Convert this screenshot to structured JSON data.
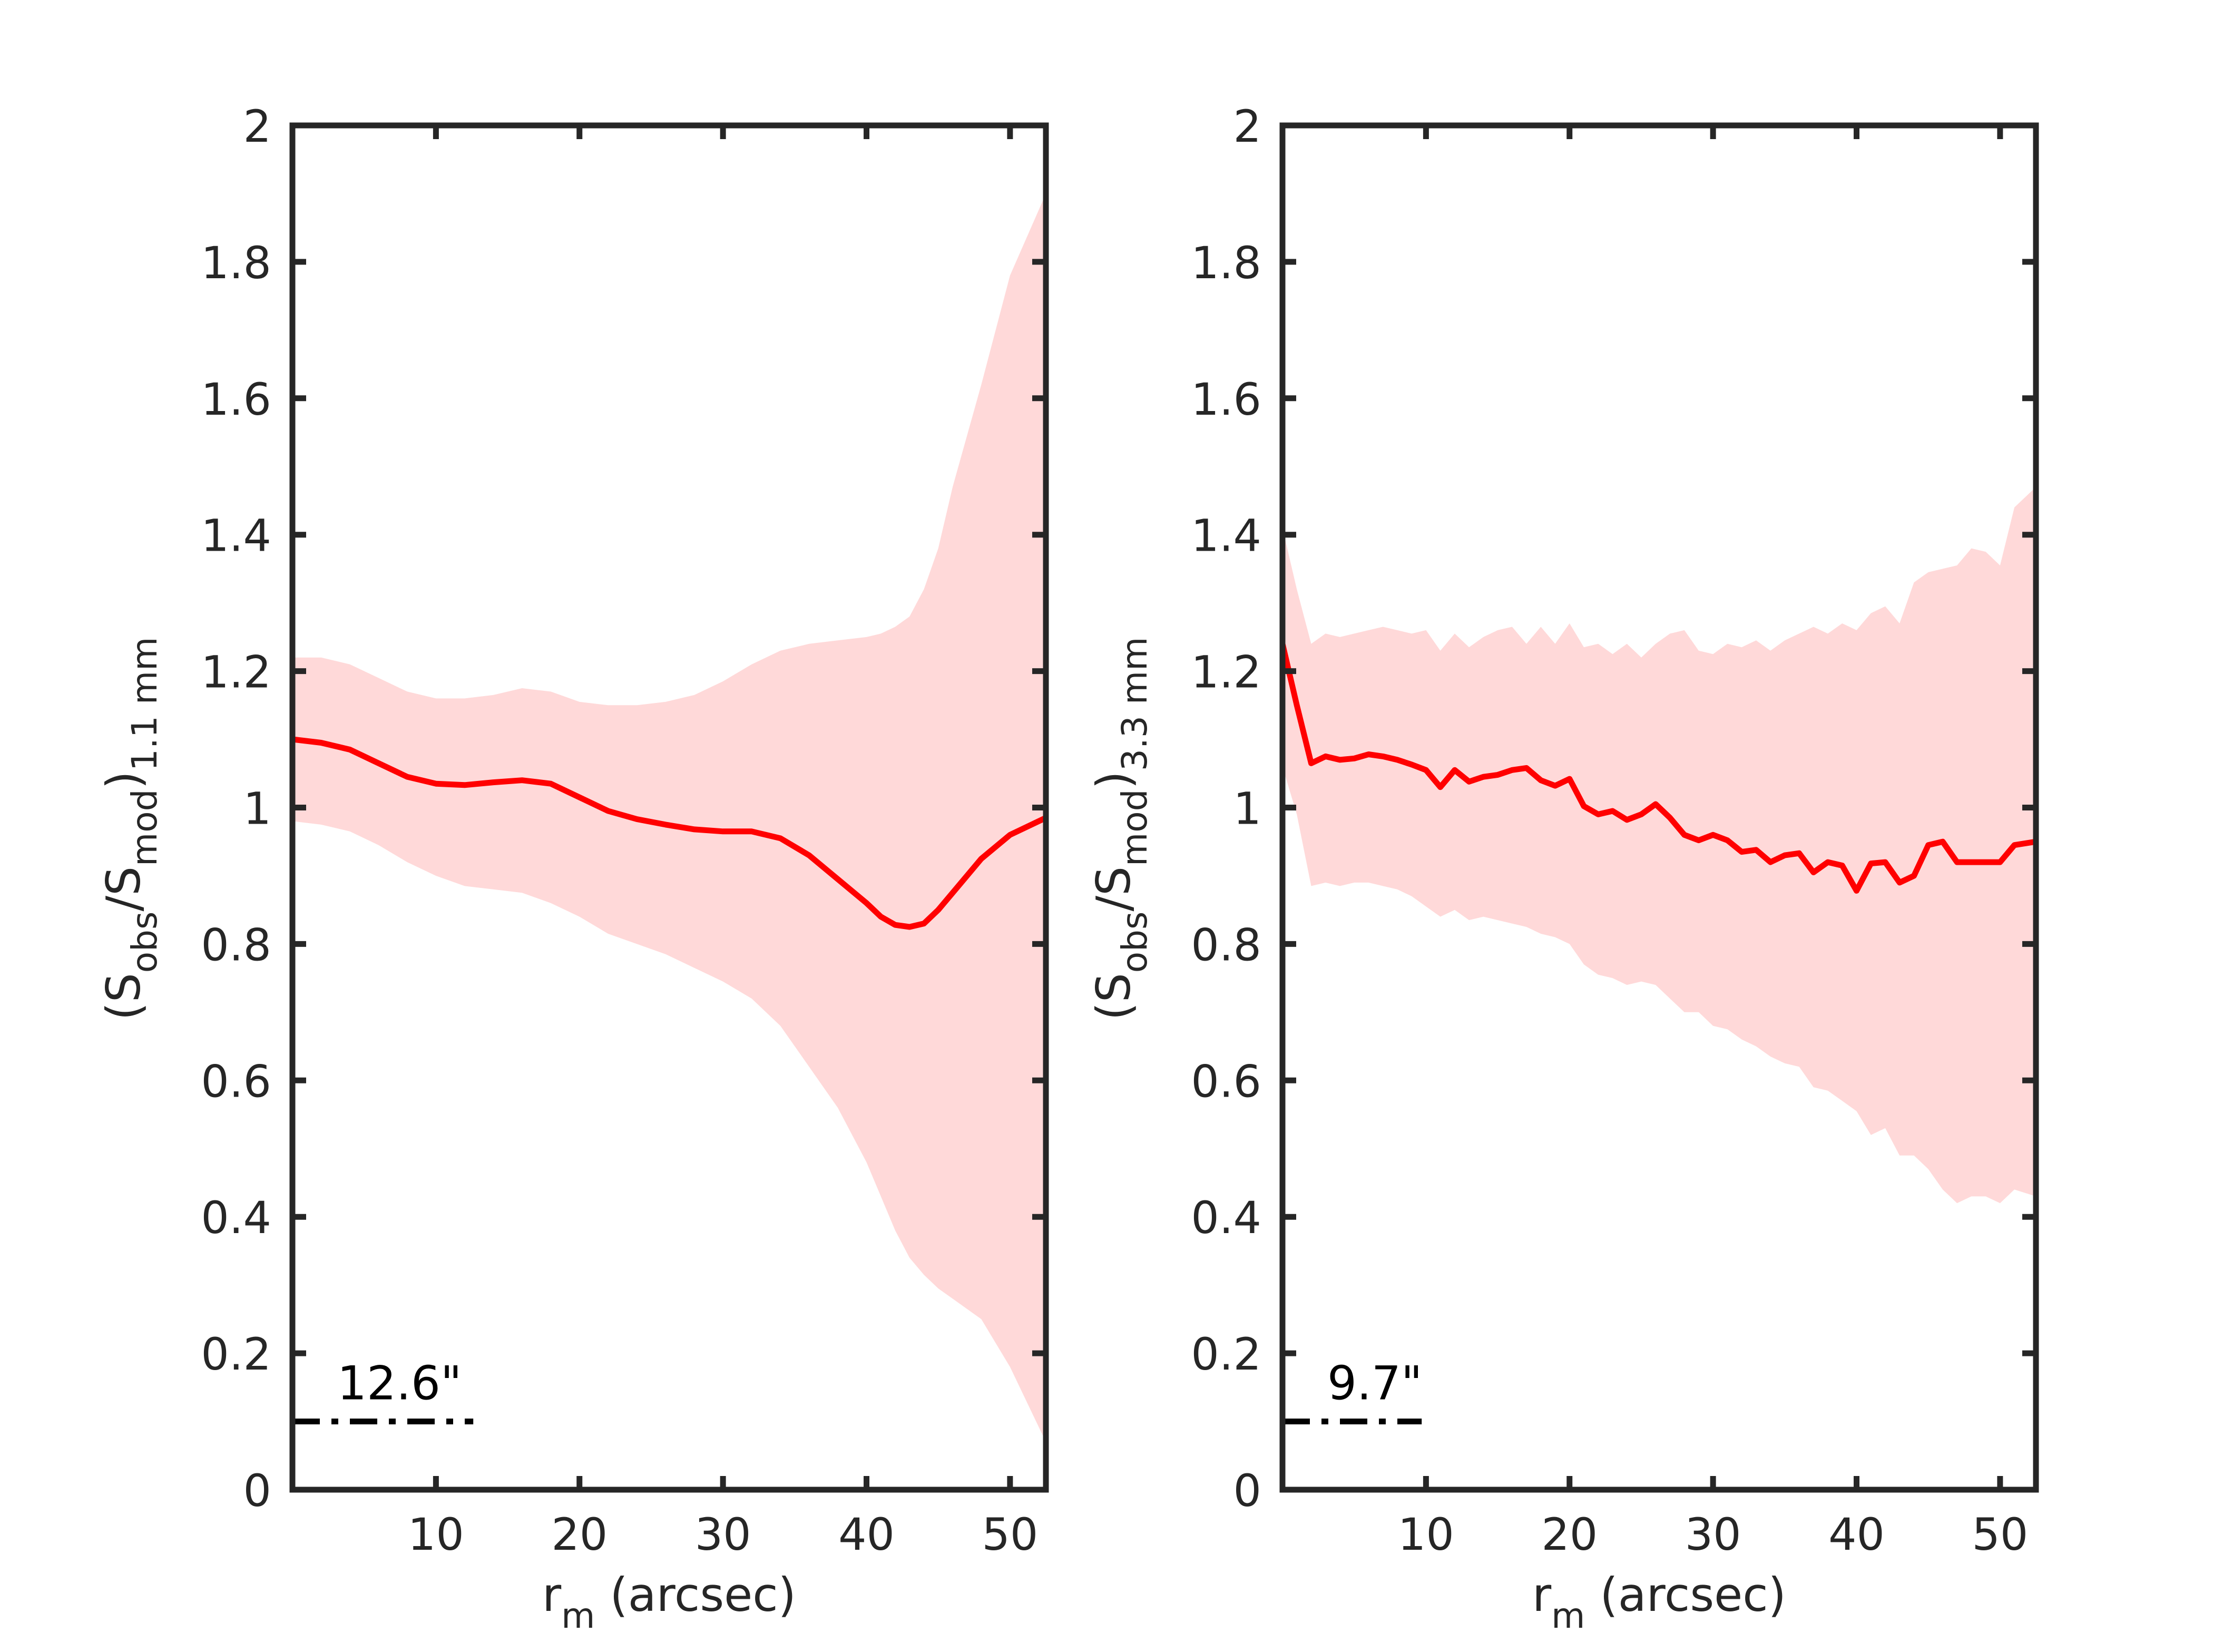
{
  "chart_data": [
    {
      "type": "line",
      "panel": "left",
      "title": "",
      "xlabel": "r",
      "xlabel_sub": "m",
      "xlabel_rest": " (arcsec)",
      "ylabel": {
        "open": "(S",
        "sub1": "obs",
        "mid": "/S",
        "sub2": "mod",
        "close": ")",
        "sub3": "1.1 mm"
      },
      "xlim": [
        0,
        52.5
      ],
      "ylim": [
        0,
        2
      ],
      "xticks": [
        10,
        20,
        30,
        40,
        50
      ],
      "yticks": [
        0,
        0.2,
        0.4,
        0.6,
        0.8,
        1,
        1.2,
        1.4,
        1.6,
        1.8,
        2
      ],
      "grid": false,
      "annotation": {
        "text": "12.6\"",
        "beam_x": [
          0,
          12.6
        ],
        "beam_y": 0.1
      },
      "series": [
        {
          "name": "ratio",
          "color": "#ff0000",
          "x": [
            0,
            2,
            4,
            6,
            8,
            10,
            12,
            14,
            16,
            18,
            20,
            22,
            24,
            26,
            28,
            30,
            32,
            34,
            36,
            38,
            40,
            41,
            42,
            43,
            44,
            45,
            46,
            48,
            50,
            52.5
          ],
          "y": [
            1.1,
            1.095,
            1.085,
            1.065,
            1.045,
            1.035,
            1.033,
            1.037,
            1.04,
            1.035,
            1.015,
            0.995,
            0.983,
            0.975,
            0.968,
            0.965,
            0.965,
            0.955,
            0.93,
            0.895,
            0.86,
            0.84,
            0.828,
            0.825,
            0.83,
            0.85,
            0.875,
            0.925,
            0.96,
            0.985
          ]
        },
        {
          "name": "uncertainty band",
          "color": "#ffd9d9",
          "x": [
            0,
            2,
            4,
            6,
            8,
            10,
            12,
            14,
            16,
            18,
            20,
            22,
            24,
            26,
            28,
            30,
            32,
            34,
            36,
            38,
            40,
            41,
            42,
            43,
            44,
            45,
            46,
            48,
            50,
            52.5
          ],
          "upper": [
            1.22,
            1.22,
            1.21,
            1.19,
            1.17,
            1.16,
            1.16,
            1.165,
            1.175,
            1.17,
            1.155,
            1.15,
            1.15,
            1.155,
            1.165,
            1.185,
            1.21,
            1.23,
            1.24,
            1.245,
            1.25,
            1.255,
            1.265,
            1.28,
            1.32,
            1.38,
            1.47,
            1.62,
            1.78,
            1.9
          ],
          "lower": [
            0.98,
            0.975,
            0.965,
            0.945,
            0.92,
            0.9,
            0.885,
            0.88,
            0.875,
            0.86,
            0.84,
            0.815,
            0.8,
            0.785,
            0.765,
            0.745,
            0.72,
            0.68,
            0.62,
            0.56,
            0.48,
            0.43,
            0.38,
            0.34,
            0.315,
            0.295,
            0.28,
            0.25,
            0.18,
            0.07
          ]
        }
      ]
    },
    {
      "type": "line",
      "panel": "right",
      "title": "",
      "xlabel": "r",
      "xlabel_sub": "m",
      "xlabel_rest": " (arcsec)",
      "ylabel": {
        "open": "(S",
        "sub1": "obs",
        "mid": "/S",
        "sub2": "mod",
        "close": ")",
        "sub3": "3.3 mm"
      },
      "xlim": [
        0,
        52.5
      ],
      "ylim": [
        0,
        2
      ],
      "xticks": [
        10,
        20,
        30,
        40,
        50
      ],
      "yticks": [
        0,
        0.2,
        0.4,
        0.6,
        0.8,
        1,
        1.2,
        1.4,
        1.6,
        1.8,
        2
      ],
      "grid": false,
      "annotation": {
        "text": "9.7\"",
        "beam_x": [
          0,
          9.7
        ],
        "beam_y": 0.1
      },
      "series": [
        {
          "name": "ratio",
          "color": "#ff0000",
          "x": [
            0,
            1,
            2,
            3,
            4,
            5,
            6,
            7,
            8,
            9,
            10,
            11,
            12,
            13,
            14,
            15,
            16,
            17,
            18,
            19,
            20,
            21,
            22,
            23,
            24,
            25,
            26,
            27,
            28,
            29,
            30,
            31,
            32,
            33,
            34,
            35,
            36,
            37,
            38,
            39,
            40,
            41,
            42,
            43,
            44,
            45,
            46,
            47,
            48,
            49,
            50,
            51,
            52.5
          ],
          "y": [
            1.24,
            1.15,
            1.065,
            1.075,
            1.07,
            1.072,
            1.078,
            1.075,
            1.07,
            1.063,
            1.055,
            1.03,
            1.055,
            1.038,
            1.045,
            1.048,
            1.055,
            1.058,
            1.04,
            1.032,
            1.042,
            1.002,
            0.99,
            0.995,
            0.982,
            0.99,
            1.005,
            0.985,
            0.96,
            0.952,
            0.96,
            0.952,
            0.935,
            0.938,
            0.92,
            0.93,
            0.933,
            0.905,
            0.92,
            0.915,
            0.878,
            0.918,
            0.92,
            0.89,
            0.9,
            0.945,
            0.95,
            0.92,
            0.92,
            0.92,
            0.92,
            0.945,
            0.95
          ]
        },
        {
          "name": "uncertainty band",
          "color": "#ffd9d9",
          "x": [
            0,
            1,
            2,
            3,
            4,
            5,
            6,
            7,
            8,
            9,
            10,
            11,
            12,
            13,
            14,
            15,
            16,
            17,
            18,
            19,
            20,
            21,
            22,
            23,
            24,
            25,
            26,
            27,
            28,
            29,
            30,
            31,
            32,
            33,
            34,
            35,
            36,
            37,
            38,
            39,
            40,
            41,
            42,
            43,
            44,
            45,
            46,
            47,
            48,
            49,
            50,
            51,
            52.5
          ],
          "upper": [
            1.41,
            1.32,
            1.24,
            1.255,
            1.25,
            1.255,
            1.26,
            1.265,
            1.26,
            1.255,
            1.26,
            1.23,
            1.255,
            1.235,
            1.25,
            1.26,
            1.265,
            1.24,
            1.265,
            1.24,
            1.27,
            1.235,
            1.24,
            1.225,
            1.24,
            1.22,
            1.24,
            1.255,
            1.26,
            1.23,
            1.225,
            1.24,
            1.235,
            1.245,
            1.23,
            1.245,
            1.255,
            1.265,
            1.255,
            1.27,
            1.26,
            1.285,
            1.295,
            1.27,
            1.33,
            1.345,
            1.35,
            1.355,
            1.38,
            1.375,
            1.355,
            1.44,
            1.47
          ],
          "lower": [
            1.06,
            0.99,
            0.885,
            0.89,
            0.885,
            0.89,
            0.89,
            0.885,
            0.88,
            0.87,
            0.855,
            0.84,
            0.85,
            0.835,
            0.84,
            0.835,
            0.83,
            0.825,
            0.815,
            0.81,
            0.8,
            0.77,
            0.755,
            0.75,
            0.74,
            0.745,
            0.74,
            0.72,
            0.7,
            0.7,
            0.68,
            0.675,
            0.66,
            0.65,
            0.635,
            0.625,
            0.62,
            0.59,
            0.585,
            0.57,
            0.555,
            0.52,
            0.53,
            0.49,
            0.49,
            0.47,
            0.44,
            0.42,
            0.43,
            0.43,
            0.42,
            0.44,
            0.43
          ]
        }
      ]
    }
  ]
}
